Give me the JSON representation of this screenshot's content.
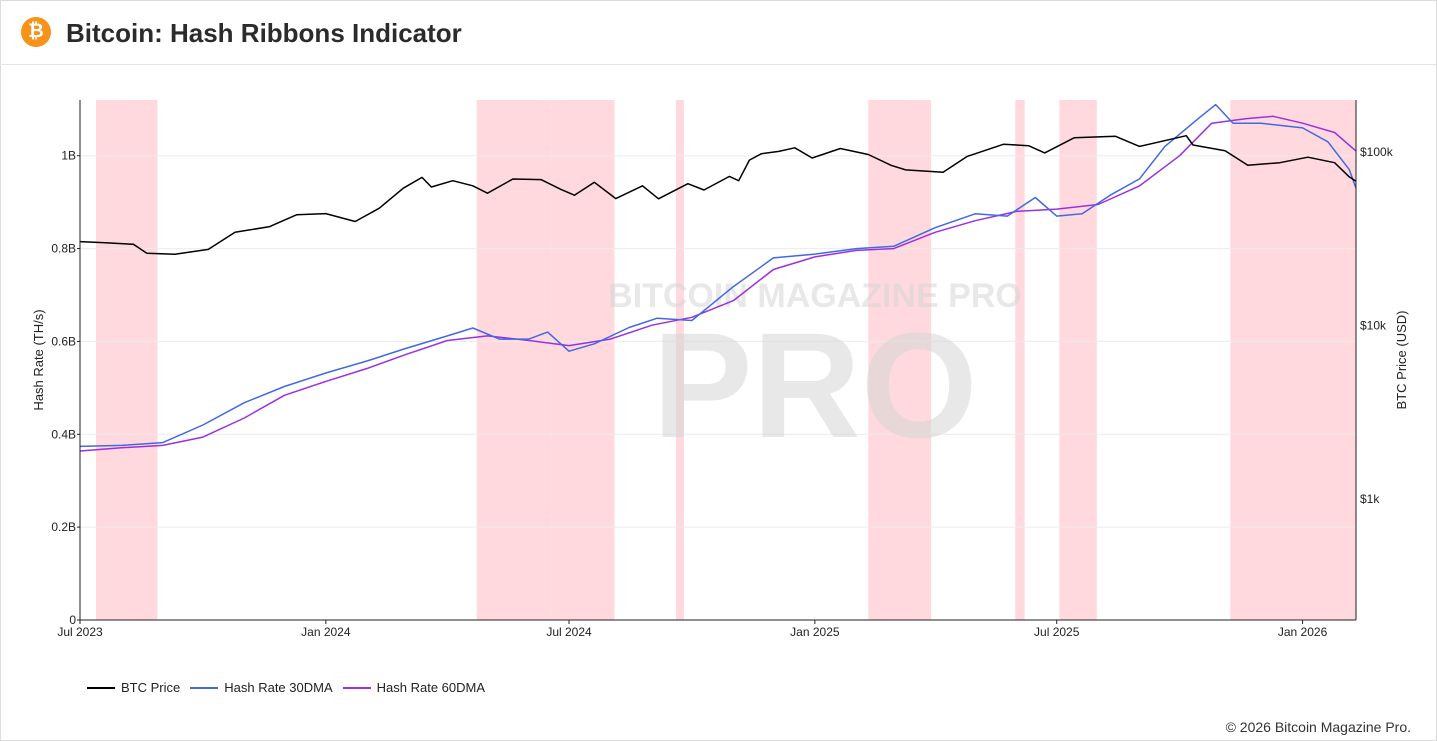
{
  "header": {
    "title": "Bitcoin: Hash Ribbons Indicator",
    "logo_icon": "bitcoin-icon",
    "logo_glyph": "₿"
  },
  "footer": {
    "copyright": "© 2026 Bitcoin Magazine Pro."
  },
  "colors": {
    "btc_price": "#000000",
    "hash_30dma": "#4169e1",
    "hash_60dma": "#9b30e0",
    "capitulation_band": "#ffc0c6"
  },
  "chart_data": {
    "type": "line",
    "title": "Bitcoin: Hash Ribbons Indicator",
    "x_range": [
      "2023-07-01",
      "2026-02-10"
    ],
    "x_ticks": [
      {
        "date": "2023-07-01",
        "label": "Jul 2023"
      },
      {
        "date": "2024-01-01",
        "label": "Jan 2024"
      },
      {
        "date": "2024-07-01",
        "label": "Jul 2024"
      },
      {
        "date": "2025-01-01",
        "label": "Jan 2025"
      },
      {
        "date": "2025-07-01",
        "label": "Jul 2025"
      },
      {
        "date": "2026-01-01",
        "label": "Jan 2026"
      }
    ],
    "y_left": {
      "label": "Hash Rate (TH/s)",
      "range": [
        0,
        1120000000.0
      ],
      "ticks": [
        {
          "value": 0,
          "label": "0"
        },
        {
          "value": 200000000.0,
          "label": "0.2B"
        },
        {
          "value": 400000000.0,
          "label": "0.4B"
        },
        {
          "value": 600000000.0,
          "label": "0.6B"
        },
        {
          "value": 800000000.0,
          "label": "0.8B"
        },
        {
          "value": 1000000000.0,
          "label": "1B"
        }
      ]
    },
    "y_right": {
      "label": "BTC Price (USD)",
      "scale": "log",
      "range": [
        200,
        200000
      ],
      "ticks": [
        {
          "value": 1000,
          "label": "$1k"
        },
        {
          "value": 10000,
          "label": "$10k"
        },
        {
          "value": 100000,
          "label": "$100k"
        }
      ]
    },
    "capitulation_bands": [
      {
        "start": "2023-07-13",
        "end": "2023-07-17"
      },
      {
        "start": "2023-07-17",
        "end": "2023-07-29"
      },
      {
        "start": "2023-07-29",
        "end": "2023-08-28"
      },
      {
        "start": "2024-04-23",
        "end": "2024-06-18"
      },
      {
        "start": "2024-06-18",
        "end": "2024-08-04"
      },
      {
        "start": "2024-09-19",
        "end": "2024-09-25"
      },
      {
        "start": "2025-02-10",
        "end": "2025-03-24"
      },
      {
        "start": "2025-03-24",
        "end": "2025-03-29"
      },
      {
        "start": "2025-05-31",
        "end": "2025-06-07"
      },
      {
        "start": "2025-07-03",
        "end": "2025-07-31"
      },
      {
        "start": "2025-11-08",
        "end": "2026-02-10"
      }
    ],
    "series": [
      {
        "name": "BTC Price",
        "axis": "right",
        "points": [
          [
            "2023-07-01",
            30500
          ],
          [
            "2023-07-20",
            30000
          ],
          [
            "2023-08-10",
            29400
          ],
          [
            "2023-08-20",
            26100
          ],
          [
            "2023-09-10",
            25800
          ],
          [
            "2023-10-05",
            27500
          ],
          [
            "2023-10-25",
            34500
          ],
          [
            "2023-11-20",
            37200
          ],
          [
            "2023-12-10",
            43500
          ],
          [
            "2024-01-01",
            44200
          ],
          [
            "2024-01-23",
            39800
          ],
          [
            "2024-02-10",
            47500
          ],
          [
            "2024-02-28",
            62000
          ],
          [
            "2024-03-13",
            71500
          ],
          [
            "2024-03-20",
            63000
          ],
          [
            "2024-04-05",
            68500
          ],
          [
            "2024-04-20",
            64000
          ],
          [
            "2024-05-01",
            58000
          ],
          [
            "2024-05-20",
            70000
          ],
          [
            "2024-06-10",
            69500
          ],
          [
            "2024-06-25",
            61000
          ],
          [
            "2024-07-05",
            56500
          ],
          [
            "2024-07-20",
            67000
          ],
          [
            "2024-08-05",
            54000
          ],
          [
            "2024-08-25",
            64000
          ],
          [
            "2024-09-06",
            53800
          ],
          [
            "2024-09-28",
            65800
          ],
          [
            "2024-10-10",
            60500
          ],
          [
            "2024-10-29",
            72500
          ],
          [
            "2024-11-05",
            68500
          ],
          [
            "2024-11-13",
            90000
          ],
          [
            "2024-11-22",
            98000
          ],
          [
            "2024-12-05",
            101000
          ],
          [
            "2024-12-17",
            106000
          ],
          [
            "2024-12-30",
            92500
          ],
          [
            "2025-01-20",
            105000
          ],
          [
            "2025-02-10",
            97000
          ],
          [
            "2025-02-27",
            84000
          ],
          [
            "2025-03-10",
            79000
          ],
          [
            "2025-04-07",
            76500
          ],
          [
            "2025-04-25",
            94500
          ],
          [
            "2025-05-22",
            111000
          ],
          [
            "2025-06-10",
            109000
          ],
          [
            "2025-06-22",
            99000
          ],
          [
            "2025-07-14",
            121000
          ],
          [
            "2025-08-14",
            123500
          ],
          [
            "2025-09-01",
            108000
          ],
          [
            "2025-10-06",
            124500
          ],
          [
            "2025-10-11",
            110000
          ],
          [
            "2025-11-04",
            102000
          ],
          [
            "2025-11-21",
            84000
          ],
          [
            "2025-12-15",
            87000
          ],
          [
            "2026-01-05",
            93500
          ],
          [
            "2026-01-25",
            87000
          ],
          [
            "2026-02-05",
            72000
          ],
          [
            "2026-02-10",
            68000
          ]
        ]
      },
      {
        "name": "Hash Rate 30DMA",
        "axis": "left",
        "points": [
          [
            "2023-07-01",
            374000000.0
          ],
          [
            "2023-08-01",
            376000000.0
          ],
          [
            "2023-09-01",
            382000000.0
          ],
          [
            "2023-10-01",
            420000000.0
          ],
          [
            "2023-11-01",
            468000000.0
          ],
          [
            "2023-12-01",
            503000000.0
          ],
          [
            "2024-01-01",
            532000000.0
          ],
          [
            "2024-02-01",
            558000000.0
          ],
          [
            "2024-03-01",
            585000000.0
          ],
          [
            "2024-04-01",
            612000000.0
          ],
          [
            "2024-04-20",
            629000000.0
          ],
          [
            "2024-05-10",
            605000000.0
          ],
          [
            "2024-06-01",
            605000000.0
          ],
          [
            "2024-06-15",
            620000000.0
          ],
          [
            "2024-07-01",
            579000000.0
          ],
          [
            "2024-07-20",
            595000000.0
          ],
          [
            "2024-08-15",
            630000000.0
          ],
          [
            "2024-09-05",
            650000000.0
          ],
          [
            "2024-10-01",
            645000000.0
          ],
          [
            "2024-11-01",
            718000000.0
          ],
          [
            "2024-12-01",
            780000000.0
          ],
          [
            "2025-01-01",
            788000000.0
          ],
          [
            "2025-02-01",
            800000000.0
          ],
          [
            "2025-03-01",
            805000000.0
          ],
          [
            "2025-04-01",
            845000000.0
          ],
          [
            "2025-05-01",
            875000000.0
          ],
          [
            "2025-05-25",
            870000000.0
          ],
          [
            "2025-06-15",
            910000000.0
          ],
          [
            "2025-07-01",
            870000000.0
          ],
          [
            "2025-07-20",
            875000000.0
          ],
          [
            "2025-08-10",
            915000000.0
          ],
          [
            "2025-09-01",
            950000000.0
          ],
          [
            "2025-09-20",
            1020000000.0
          ],
          [
            "2025-10-15",
            1080000000.0
          ],
          [
            "2025-10-28",
            1110000000.0
          ],
          [
            "2025-11-10",
            1070000000.0
          ],
          [
            "2025-12-01",
            1070000000.0
          ],
          [
            "2026-01-01",
            1060000000.0
          ],
          [
            "2026-01-20",
            1030000000.0
          ],
          [
            "2026-02-05",
            970000000.0
          ],
          [
            "2026-02-10",
            930000000.0
          ]
        ]
      },
      {
        "name": "Hash Rate 60DMA",
        "axis": "left",
        "points": [
          [
            "2023-07-01",
            364000000.0
          ],
          [
            "2023-08-01",
            371000000.0
          ],
          [
            "2023-09-01",
            376000000.0
          ],
          [
            "2023-10-01",
            394000000.0
          ],
          [
            "2023-11-01",
            435000000.0
          ],
          [
            "2023-12-01",
            484000000.0
          ],
          [
            "2024-01-01",
            514000000.0
          ],
          [
            "2024-02-01",
            542000000.0
          ],
          [
            "2024-03-01",
            572000000.0
          ],
          [
            "2024-04-01",
            602000000.0
          ],
          [
            "2024-05-01",
            612000000.0
          ],
          [
            "2024-06-01",
            602000000.0
          ],
          [
            "2024-07-01",
            591000000.0
          ],
          [
            "2024-08-01",
            605000000.0
          ],
          [
            "2024-09-01",
            635000000.0
          ],
          [
            "2024-10-01",
            652000000.0
          ],
          [
            "2024-11-01",
            688000000.0
          ],
          [
            "2024-12-01",
            755000000.0
          ],
          [
            "2025-01-01",
            782000000.0
          ],
          [
            "2025-02-01",
            796000000.0
          ],
          [
            "2025-03-01",
            800000000.0
          ],
          [
            "2025-04-01",
            835000000.0
          ],
          [
            "2025-05-01",
            860000000.0
          ],
          [
            "2025-06-01",
            880000000.0
          ],
          [
            "2025-07-01",
            885000000.0
          ],
          [
            "2025-08-01",
            895000000.0
          ],
          [
            "2025-09-01",
            935000000.0
          ],
          [
            "2025-10-01",
            1000000000.0
          ],
          [
            "2025-10-25",
            1070000000.0
          ],
          [
            "2025-11-20",
            1080000000.0
          ],
          [
            "2025-12-10",
            1085000000.0
          ],
          [
            "2026-01-01",
            1070000000.0
          ],
          [
            "2026-01-25",
            1050000000.0
          ],
          [
            "2026-02-10",
            1010000000.0
          ]
        ]
      }
    ],
    "legend": [
      "BTC Price",
      "Hash Rate 30DMA",
      "Hash Rate 60DMA"
    ],
    "watermark": "BITCOIN MAGAZINE PRO"
  }
}
